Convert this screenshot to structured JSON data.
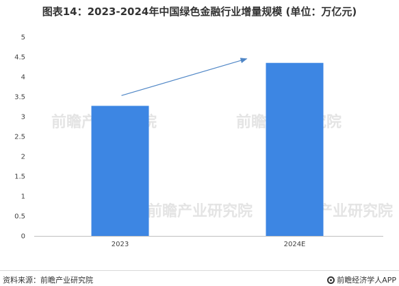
{
  "chart_data": {
    "type": "bar",
    "title": "图表14：2023-2024年中国绿色金融行业增量规模 (单位：万亿元)",
    "categories": [
      "2023",
      "2024E"
    ],
    "values": [
      3.27,
      4.35
    ],
    "ylim": [
      0,
      5
    ],
    "yticks": [
      "0",
      "0.5",
      "1",
      "1.5",
      "2",
      "2.5",
      "3",
      "3.5",
      "4",
      "4.5",
      "5"
    ],
    "grid": false,
    "legend": "none",
    "bar_color": "#3d86e3",
    "arrow_color": "#4f86c6",
    "annotation": "increase-arrow"
  },
  "watermark": {
    "text": "前瞻产业研究院"
  },
  "footer": {
    "source": "资料来源：前瞻产业研究院",
    "brand_icon": "brand-circle-icon",
    "brand": "前瞻经济学人APP"
  }
}
